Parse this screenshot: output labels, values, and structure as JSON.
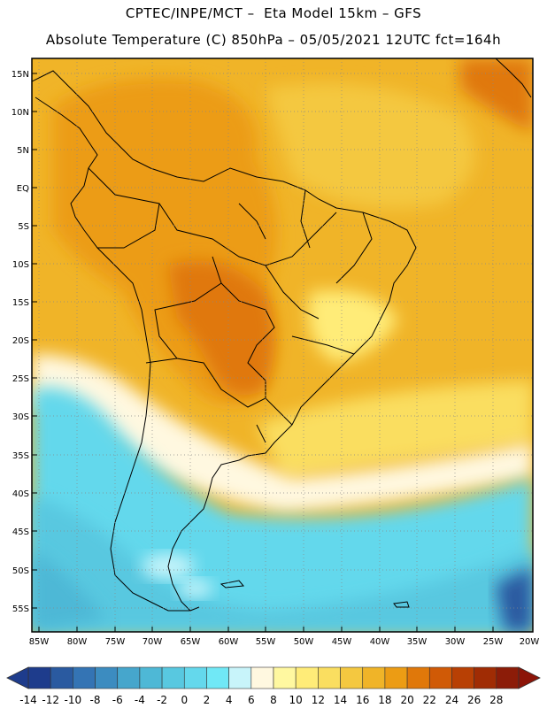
{
  "header": {
    "line1": "CPTEC/INPE/MCT –  Eta Model 15km – GFS",
    "line2": "Absolute Temperature (C) 850hPa – 05/05/2021 12UTC fct=164h"
  },
  "map": {
    "lat_labels": [
      "15N",
      "10N",
      "5N",
      "EQ",
      "5S",
      "10S",
      "15S",
      "20S",
      "25S",
      "30S",
      "35S",
      "40S",
      "45S",
      "50S",
      "55S"
    ],
    "lon_labels": [
      "85W",
      "80W",
      "75W",
      "70W",
      "65W",
      "60W",
      "55W",
      "50W",
      "45W",
      "40W",
      "35W",
      "30W",
      "25W",
      "20W"
    ]
  },
  "colorbar": {
    "labels": [
      "-14",
      "-12",
      "-10",
      "-8",
      "-6",
      "-4",
      "-2",
      "0",
      "2",
      "4",
      "6",
      "8",
      "10",
      "12",
      "14",
      "16",
      "18",
      "20",
      "22",
      "24",
      "26",
      "28"
    ],
    "colors": [
      "#1e3c8c",
      "#2a5aa0",
      "#3474b4",
      "#3c8cc0",
      "#46a6cc",
      "#4eb8d6",
      "#58c8e0",
      "#64d8ec",
      "#70e8f6",
      "#c8f4fa",
      "#fff8e0",
      "#fff8a0",
      "#ffec78",
      "#fade60",
      "#f4c840",
      "#f0b428",
      "#ec9c14",
      "#e0780a",
      "#d05a06",
      "#b84004",
      "#a02c04",
      "#8c1c08"
    ],
    "low_color": "#1e3c8c",
    "high_color": "#8c1408"
  }
}
